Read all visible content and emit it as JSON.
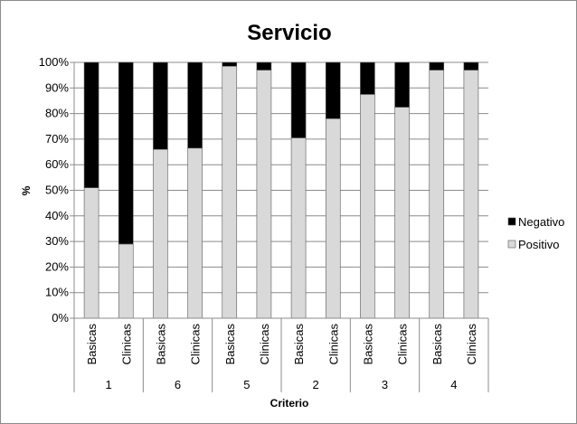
{
  "chart_data": {
    "type": "bar",
    "stacked": true,
    "percent": true,
    "title": "Servicio",
    "xlabel": "Criterio",
    "ylabel": "%",
    "ylim": [
      0,
      100
    ],
    "y_ticks": [
      "0%",
      "10%",
      "20%",
      "30%",
      "40%",
      "50%",
      "60%",
      "70%",
      "80%",
      "90%",
      "100%"
    ],
    "groups": [
      "1",
      "6",
      "5",
      "2",
      "3",
      "4"
    ],
    "categories": [
      "Basicas",
      "Clinicas",
      "Basicas",
      "Clinicas",
      "Basicas",
      "Clinicas",
      "Basicas",
      "Clinicas",
      "Basicas",
      "Clinicas",
      "Basicas",
      "Clinicas"
    ],
    "series": [
      {
        "name": "Negativo",
        "color": "#000000",
        "values": [
          49,
          71,
          34,
          33.5,
          1.5,
          3,
          29.5,
          22,
          12.5,
          17.5,
          3,
          3
        ]
      },
      {
        "name": "Positivo",
        "color": "#d9d9d9",
        "values": [
          51,
          29,
          66,
          66.5,
          98.5,
          97,
          70.5,
          78,
          87.5,
          82.5,
          97,
          97
        ]
      }
    ],
    "grid": true,
    "legend_position": "right"
  }
}
